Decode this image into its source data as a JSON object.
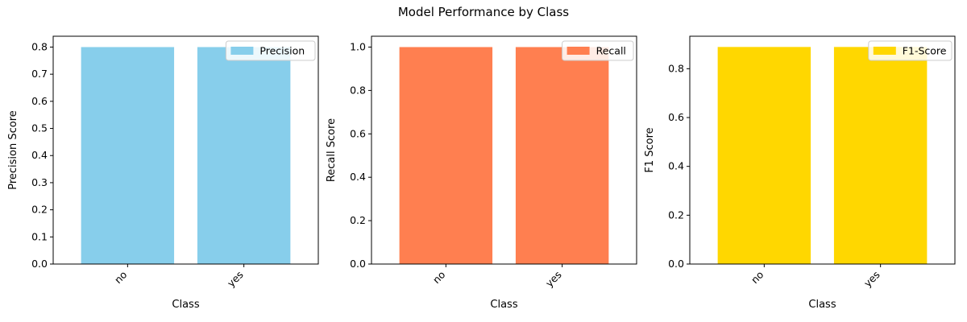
{
  "figure_title": "Model Performance by Class",
  "chart_data": [
    {
      "type": "bar",
      "title": "",
      "categories": [
        "no",
        "yes"
      ],
      "series": [
        {
          "name": "Precision",
          "values": [
            0.8,
            0.8
          ]
        }
      ],
      "xlabel": "Class",
      "ylabel": "Precision Score",
      "ylim": [
        0,
        0.84
      ],
      "yticks": [
        0.0,
        0.1,
        0.2,
        0.3,
        0.4,
        0.5,
        0.6,
        0.7,
        0.8
      ],
      "tick_decimals": 1,
      "color": "#87CEEB",
      "legend_label": "Precision",
      "legend": "top-right",
      "grid": false
    },
    {
      "type": "bar",
      "title": "",
      "categories": [
        "no",
        "yes"
      ],
      "series": [
        {
          "name": "Recall",
          "values": [
            1.0,
            1.0
          ]
        }
      ],
      "xlabel": "Class",
      "ylabel": "Recall Score",
      "ylim": [
        0,
        1.05
      ],
      "yticks": [
        0.0,
        0.2,
        0.4,
        0.6,
        0.8,
        1.0
      ],
      "tick_decimals": 1,
      "color": "#FF7F50",
      "legend_label": "Recall",
      "legend": "top-right",
      "grid": false
    },
    {
      "type": "bar",
      "title": "",
      "categories": [
        "no",
        "yes"
      ],
      "series": [
        {
          "name": "F1-Score",
          "values": [
            0.889,
            0.889
          ]
        }
      ],
      "xlabel": "Class",
      "ylabel": "F1 Score",
      "ylim": [
        0,
        0.933
      ],
      "yticks": [
        0.0,
        0.2,
        0.4,
        0.6,
        0.8
      ],
      "tick_decimals": 1,
      "color": "#FFD700",
      "legend_label": "F1-Score",
      "legend": "top-right",
      "grid": false
    }
  ]
}
